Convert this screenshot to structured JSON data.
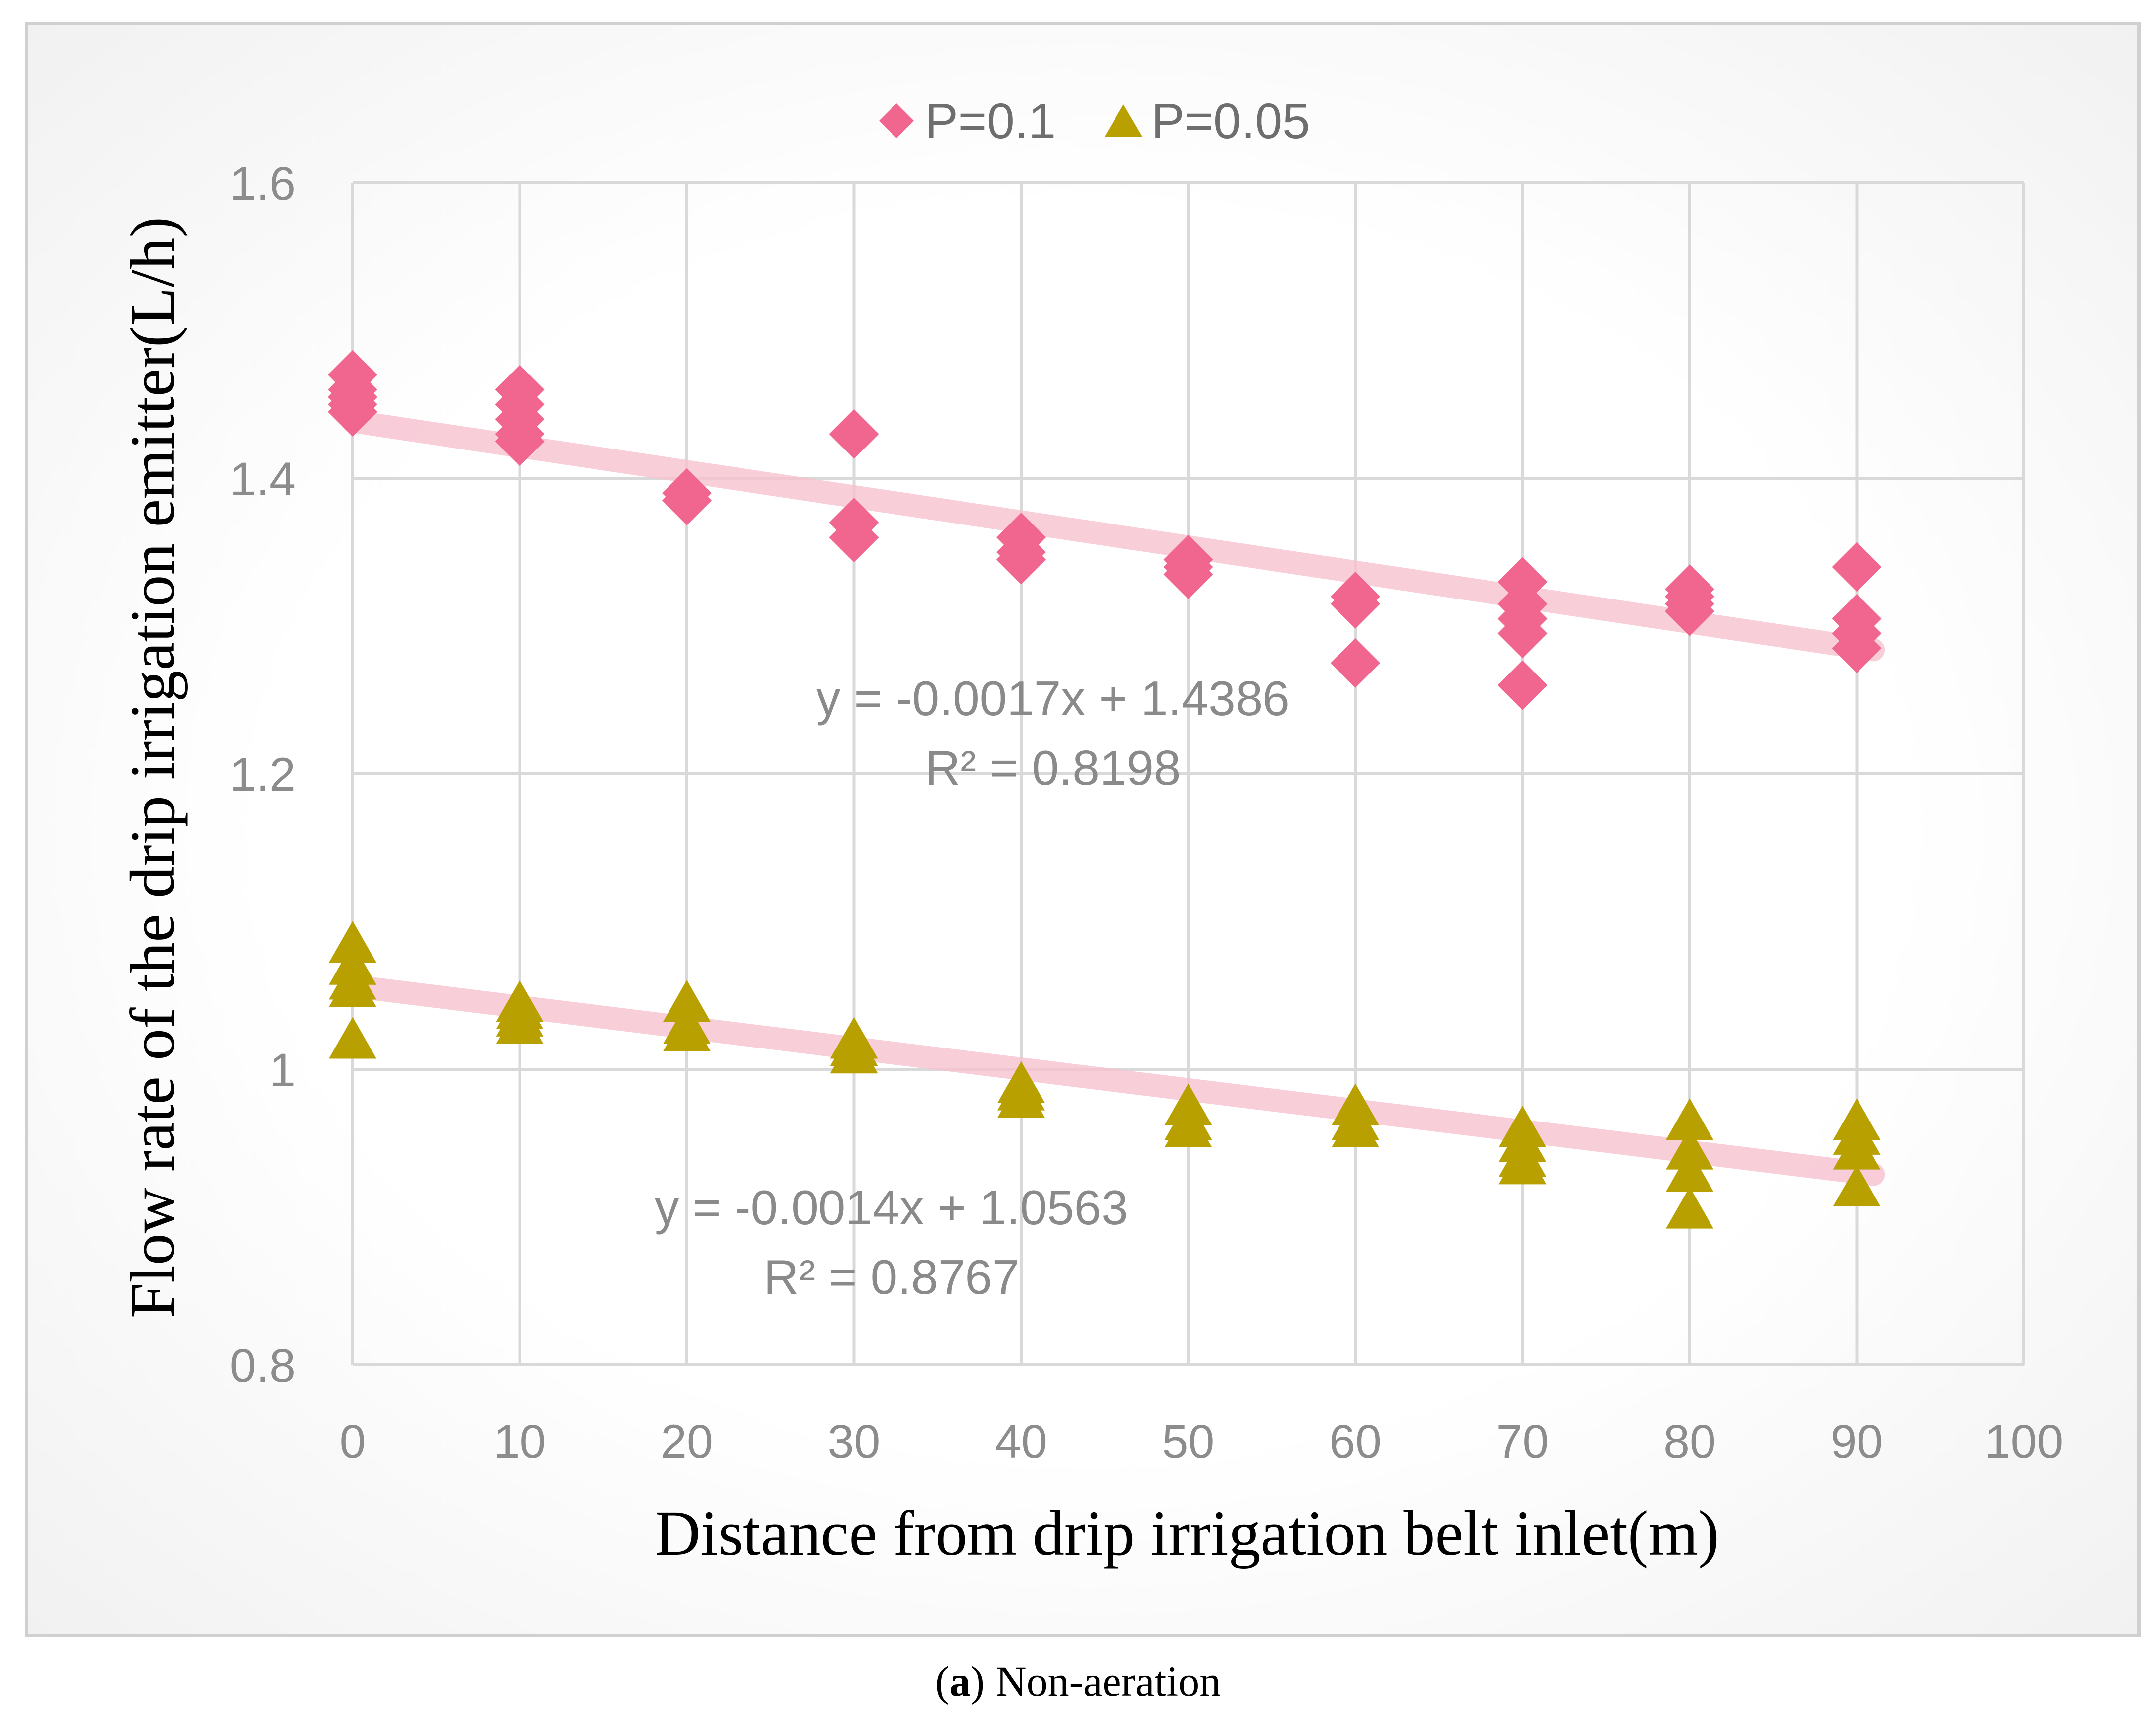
{
  "chart_data": {
    "type": "scatter",
    "title": "",
    "xlabel": "Distance from drip irrigation belt inlet(m)",
    "ylabel": "Flow rate of the drip irrigation emitter(L/h)",
    "xlim": [
      0,
      100
    ],
    "ylim": [
      0.8,
      1.6
    ],
    "x_ticks": [
      0,
      10,
      20,
      30,
      40,
      50,
      60,
      70,
      80,
      90,
      100
    ],
    "y_ticks": [
      0.8,
      1,
      1.2,
      1.4,
      1.6
    ],
    "x_tick_labels": [
      "0",
      "10",
      "20",
      "30",
      "40",
      "50",
      "60",
      "70",
      "80",
      "90",
      "100"
    ],
    "y_tick_labels": [
      "0.8",
      "1",
      "1.2",
      "1.4",
      "1.6"
    ],
    "grid": true,
    "legend_position": "top-center",
    "series": [
      {
        "name": "P=0.1",
        "marker": "diamond",
        "color": "#f0668e",
        "points": [
          [
            0,
            1.47
          ],
          [
            0,
            1.46
          ],
          [
            0,
            1.455
          ],
          [
            0,
            1.45
          ],
          [
            0,
            1.445
          ],
          [
            10,
            1.46
          ],
          [
            10,
            1.45
          ],
          [
            10,
            1.44
          ],
          [
            10,
            1.43
          ],
          [
            10,
            1.425
          ],
          [
            20,
            1.39
          ],
          [
            20,
            1.385
          ],
          [
            30,
            1.43
          ],
          [
            30,
            1.37
          ],
          [
            30,
            1.36
          ],
          [
            40,
            1.36
          ],
          [
            40,
            1.35
          ],
          [
            40,
            1.345
          ],
          [
            50,
            1.345
          ],
          [
            50,
            1.34
          ],
          [
            50,
            1.335
          ],
          [
            60,
            1.32
          ],
          [
            60,
            1.315
          ],
          [
            60,
            1.275
          ],
          [
            70,
            1.33
          ],
          [
            70,
            1.315
          ],
          [
            70,
            1.305
          ],
          [
            70,
            1.295
          ],
          [
            70,
            1.26
          ],
          [
            80,
            1.325
          ],
          [
            80,
            1.32
          ],
          [
            80,
            1.315
          ],
          [
            80,
            1.31
          ],
          [
            90,
            1.34
          ],
          [
            90,
            1.305
          ],
          [
            90,
            1.295
          ],
          [
            90,
            1.285
          ]
        ],
        "trendline": {
          "slope": -0.0017,
          "intercept": 1.4386,
          "x_range": [
            0,
            91
          ],
          "equation": "y = -0.0017x + 1.4386",
          "r2_label": "R² = 0.8198"
        }
      },
      {
        "name": "P=0.05",
        "marker": "triangle",
        "color": "#b8a000",
        "points": [
          [
            0,
            1.085
          ],
          [
            0,
            1.07
          ],
          [
            0,
            1.06
          ],
          [
            0,
            1.055
          ],
          [
            0,
            1.02
          ],
          [
            10,
            1.045
          ],
          [
            10,
            1.04
          ],
          [
            10,
            1.035
          ],
          [
            10,
            1.03
          ],
          [
            20,
            1.045
          ],
          [
            20,
            1.03
          ],
          [
            20,
            1.025
          ],
          [
            30,
            1.02
          ],
          [
            30,
            1.015
          ],
          [
            30,
            1.01
          ],
          [
            40,
            0.99
          ],
          [
            40,
            0.985
          ],
          [
            40,
            0.98
          ],
          [
            50,
            0.975
          ],
          [
            50,
            0.965
          ],
          [
            50,
            0.96
          ],
          [
            60,
            0.975
          ],
          [
            60,
            0.965
          ],
          [
            60,
            0.96
          ],
          [
            70,
            0.96
          ],
          [
            70,
            0.95
          ],
          [
            70,
            0.94
          ],
          [
            70,
            0.935
          ],
          [
            80,
            0.965
          ],
          [
            80,
            0.945
          ],
          [
            80,
            0.93
          ],
          [
            80,
            0.905
          ],
          [
            90,
            0.965
          ],
          [
            90,
            0.955
          ],
          [
            90,
            0.945
          ],
          [
            90,
            0.92
          ]
        ],
        "trendline": {
          "slope": -0.0014,
          "intercept": 1.0563,
          "x_range": [
            0,
            91
          ],
          "equation": "y = -0.0014x + 1.0563",
          "r2_label": "R² = 0.8767"
        }
      }
    ],
    "trendline_color": "#f7c2d0"
  },
  "caption": {
    "label": "a",
    "text": "Non-aeration"
  }
}
